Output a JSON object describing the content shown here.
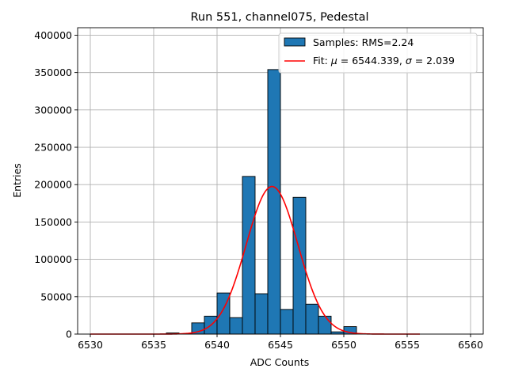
{
  "chart_data": {
    "type": "bar",
    "title": "Run 551, channel075, Pedestal",
    "xlabel": "ADC Counts",
    "ylabel": "Entries",
    "xlim": [
      6529.0,
      6561.0
    ],
    "ylim": [
      0,
      410000
    ],
    "xticks": [
      6530,
      6535,
      6540,
      6545,
      6550,
      6555,
      6560
    ],
    "yticks": [
      0,
      50000,
      100000,
      150000,
      200000,
      250000,
      300000,
      350000,
      400000
    ],
    "grid": true,
    "legend_position": "top-right",
    "bar_color": "#1f77b4",
    "fit_color": "#ff0000",
    "histogram": {
      "name": "Samples: RMS=2.24",
      "bin_width": 1.0,
      "bin_starts": [
        6536,
        6537,
        6538,
        6539,
        6540,
        6541,
        6542,
        6543,
        6544,
        6545,
        6546,
        6547,
        6548,
        6549,
        6550
      ],
      "values": [
        1500,
        500,
        15000,
        24000,
        55000,
        22000,
        211000,
        54000,
        354000,
        33000,
        183000,
        40000,
        24000,
        3000,
        10000
      ]
    },
    "fit": {
      "name_prefix": "Fit: ",
      "mu_symbol": "μ",
      "mu_text": " = 6544.339, ",
      "sigma_symbol": "σ",
      "sigma_text": " = 2.039",
      "mu": 6544.339,
      "sigma": 2.039,
      "amplitude": 197500,
      "x_range": [
        6530,
        6556
      ]
    }
  }
}
